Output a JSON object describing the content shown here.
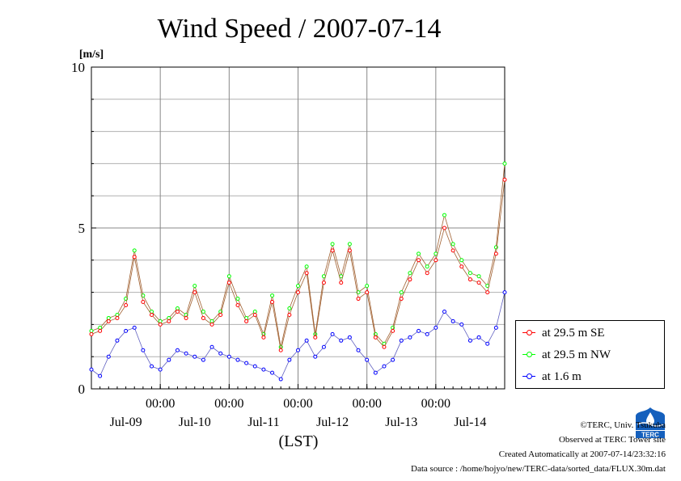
{
  "chart_data": {
    "type": "line",
    "title": "Wind Speed / 2007-07-14",
    "ylabel": "[m/s]",
    "xlabel": "(LST)",
    "ylim": [
      0,
      10
    ],
    "y_ticks": [
      "0",
      "5",
      "10"
    ],
    "x_time_ticks": [
      "00:00",
      "00:00",
      "00:00",
      "00:00",
      "00:00"
    ],
    "x_date_labels": [
      "Jul-09",
      "Jul-10",
      "Jul-11",
      "Jul-12",
      "Jul-13",
      "Jul-14"
    ],
    "xlim_hours": [
      0,
      144
    ],
    "grid": true,
    "legend_position": "right",
    "x_hours": [
      0,
      3,
      6,
      9,
      12,
      15,
      18,
      21,
      24,
      27,
      30,
      33,
      36,
      39,
      42,
      45,
      48,
      51,
      54,
      57,
      60,
      63,
      66,
      69,
      72,
      75,
      78,
      81,
      84,
      87,
      90,
      93,
      96,
      99,
      102,
      105,
      108,
      111,
      114,
      117,
      120,
      123,
      126,
      129,
      132,
      135,
      138,
      141,
      144
    ],
    "series": [
      {
        "name": "at 29.5 m SE",
        "color": "#ff0000",
        "values": [
          1.7,
          1.8,
          2.1,
          2.2,
          2.6,
          4.1,
          2.7,
          2.3,
          2.0,
          2.1,
          2.4,
          2.2,
          3.0,
          2.2,
          2.0,
          2.3,
          3.3,
          2.6,
          2.1,
          2.3,
          1.6,
          2.7,
          1.2,
          2.3,
          3.0,
          3.6,
          1.6,
          3.3,
          4.3,
          3.3,
          4.3,
          2.8,
          3.0,
          1.6,
          1.3,
          1.8,
          2.8,
          3.4,
          4.0,
          3.6,
          4.0,
          5.0,
          4.3,
          3.8,
          3.4,
          3.3,
          3.0,
          4.2,
          6.5
        ]
      },
      {
        "name": "at 29.5 m NW",
        "color": "#00ff00",
        "values": [
          1.8,
          1.9,
          2.2,
          2.3,
          2.8,
          4.3,
          2.9,
          2.4,
          2.1,
          2.2,
          2.5,
          2.3,
          3.2,
          2.4,
          2.1,
          2.4,
          3.5,
          2.8,
          2.2,
          2.4,
          1.7,
          2.9,
          1.3,
          2.5,
          3.2,
          3.8,
          1.7,
          3.5,
          4.5,
          3.5,
          4.5,
          3.0,
          3.2,
          1.7,
          1.4,
          1.9,
          3.0,
          3.6,
          4.2,
          3.8,
          4.2,
          5.4,
          4.5,
          4.0,
          3.6,
          3.5,
          3.2,
          4.4,
          7.0
        ]
      },
      {
        "name": "at 1.6 m",
        "color": "#0000ff",
        "values": [
          0.6,
          0.4,
          1.0,
          1.5,
          1.8,
          1.9,
          1.2,
          0.7,
          0.6,
          0.9,
          1.2,
          1.1,
          1.0,
          0.9,
          1.3,
          1.1,
          1.0,
          0.9,
          0.8,
          0.7,
          0.6,
          0.5,
          0.3,
          0.9,
          1.2,
          1.5,
          1.0,
          1.3,
          1.7,
          1.5,
          1.6,
          1.2,
          0.9,
          0.5,
          0.7,
          0.9,
          1.5,
          1.6,
          1.8,
          1.7,
          1.9,
          2.4,
          2.1,
          2.0,
          1.5,
          1.6,
          1.4,
          1.9,
          3.0
        ]
      }
    ]
  },
  "credits": {
    "copyright": "©TERC, Univ. Tsukuba",
    "observed": "Observed at TERC Tower site",
    "created": "Created Automatically at 2007-07-14/23:32:16",
    "source": "Data source : /home/hojyo/new/TERC-data/sorted_data/FLUX.30m.dat"
  },
  "logo": {
    "text": "TERC",
    "color": "#1560bd"
  }
}
